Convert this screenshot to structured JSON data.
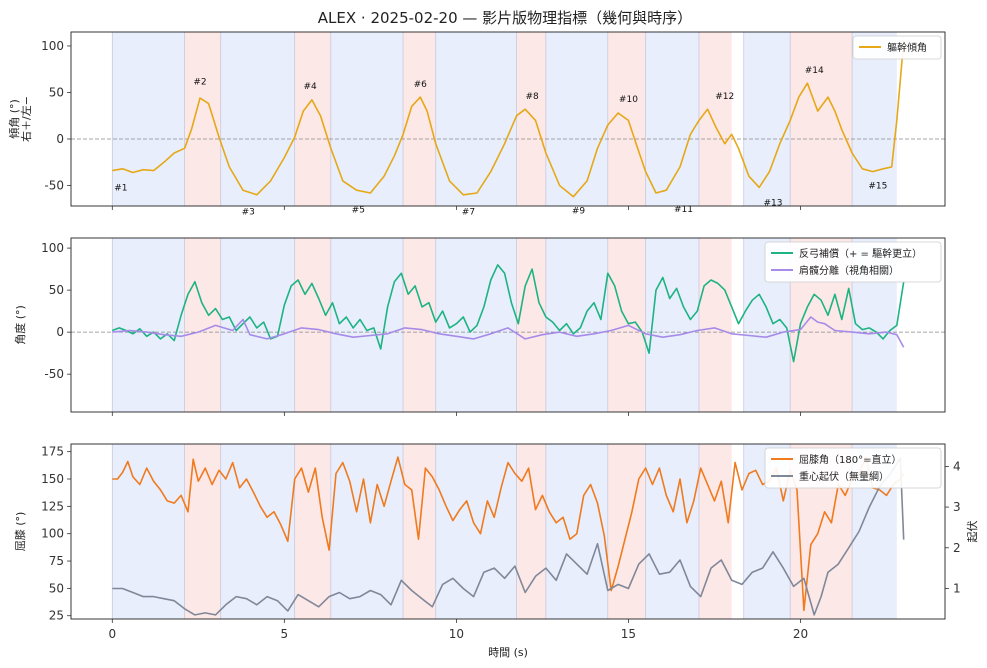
{
  "title": "ALEX · 2025-02-20 — 影片版物理指標（幾何與時序）",
  "xlabel": "時間 (s)",
  "x_ticks": [
    0,
    5,
    10,
    15,
    20
  ],
  "x_range": [
    -1.2,
    24.2
  ],
  "colors": {
    "tilt": "#e6a817",
    "counter": "#1db382",
    "shoulder": "#a78be8",
    "knee": "#f07a1e",
    "com": "#7f8899",
    "band_blue": "#e8eefc",
    "band_red": "#fde8e8",
    "zero_line": "#888888"
  },
  "bands": [
    {
      "start": 0.0,
      "end": 2.1,
      "side": "left"
    },
    {
      "start": 2.1,
      "end": 3.15,
      "side": "right"
    },
    {
      "start": 3.15,
      "end": 5.3,
      "side": "left"
    },
    {
      "start": 5.3,
      "end": 6.35,
      "side": "right"
    },
    {
      "start": 6.35,
      "end": 8.45,
      "side": "left"
    },
    {
      "start": 8.45,
      "end": 9.4,
      "side": "right"
    },
    {
      "start": 9.4,
      "end": 11.75,
      "side": "left"
    },
    {
      "start": 11.75,
      "end": 12.6,
      "side": "right"
    },
    {
      "start": 12.6,
      "end": 14.4,
      "side": "left"
    },
    {
      "start": 14.4,
      "end": 15.5,
      "side": "right"
    },
    {
      "start": 15.5,
      "end": 17.05,
      "side": "left"
    },
    {
      "start": 17.05,
      "end": 18.0,
      "side": "right"
    },
    {
      "start": 18.35,
      "end": 19.7,
      "side": "left"
    },
    {
      "start": 19.7,
      "end": 21.5,
      "side": "right"
    },
    {
      "start": 21.5,
      "end": 22.8,
      "side": "left"
    }
  ],
  "chart_data": [
    {
      "type": "line",
      "ylabel": "傾角 (°)\n右＋/左−",
      "ylim": [
        -72,
        115
      ],
      "y_ticks": [
        -50,
        0,
        50,
        100
      ],
      "legend_position": "top-right",
      "series": [
        {
          "name": "軀幹傾角",
          "color_key": "tilt",
          "x": [
            0.0,
            0.3,
            0.6,
            0.9,
            1.2,
            1.5,
            1.8,
            2.1,
            2.3,
            2.55,
            2.8,
            3.1,
            3.4,
            3.8,
            4.2,
            4.6,
            5.0,
            5.3,
            5.55,
            5.8,
            6.05,
            6.35,
            6.7,
            7.1,
            7.5,
            7.9,
            8.2,
            8.45,
            8.7,
            8.95,
            9.15,
            9.4,
            9.8,
            10.2,
            10.6,
            11.0,
            11.4,
            11.75,
            12.0,
            12.3,
            12.6,
            13.0,
            13.4,
            13.8,
            14.1,
            14.4,
            14.7,
            15.0,
            15.25,
            15.5,
            15.8,
            16.1,
            16.5,
            16.8,
            17.05,
            17.3,
            17.55,
            17.8,
            18.0,
            18.2,
            18.5,
            18.8,
            19.1,
            19.4,
            19.7,
            19.95,
            20.2,
            20.5,
            20.8,
            21.0,
            21.2,
            21.5,
            21.8,
            22.1,
            22.4,
            22.65,
            22.8,
            23.0
          ],
          "y": [
            -34,
            -32,
            -36,
            -33,
            -34,
            -25,
            -15,
            -10,
            10,
            44,
            38,
            2,
            -30,
            -55,
            -60,
            -45,
            -20,
            2,
            30,
            42,
            25,
            -10,
            -45,
            -55,
            -58,
            -40,
            -18,
            5,
            35,
            45,
            30,
            -5,
            -45,
            -60,
            -58,
            -35,
            -5,
            25,
            32,
            20,
            -15,
            -50,
            -62,
            -45,
            -10,
            15,
            28,
            20,
            -8,
            -35,
            -58,
            -55,
            -30,
            5,
            20,
            32,
            12,
            -5,
            5,
            -10,
            -40,
            -52,
            -35,
            -5,
            20,
            45,
            60,
            30,
            45,
            30,
            10,
            -15,
            -32,
            -35,
            -32,
            -30,
            20,
            105
          ]
        }
      ],
      "annotations": [
        {
          "label": "#1",
          "x": 0.25,
          "y": -52
        },
        {
          "label": "#2",
          "x": 2.55,
          "y": 62
        },
        {
          "label": "#3",
          "x": 3.95,
          "y": -78
        },
        {
          "label": "#4",
          "x": 5.75,
          "y": 57
        },
        {
          "label": "#5",
          "x": 7.15,
          "y": -76
        },
        {
          "label": "#6",
          "x": 8.95,
          "y": 59
        },
        {
          "label": "#7",
          "x": 10.35,
          "y": -78
        },
        {
          "label": "#8",
          "x": 12.2,
          "y": 46
        },
        {
          "label": "#9",
          "x": 13.55,
          "y": -77
        },
        {
          "label": "#10",
          "x": 15.0,
          "y": 43
        },
        {
          "label": "#11",
          "x": 16.6,
          "y": -75
        },
        {
          "label": "#12",
          "x": 17.8,
          "y": 46
        },
        {
          "label": "#13",
          "x": 19.2,
          "y": -68
        },
        {
          "label": "#14",
          "x": 20.4,
          "y": 74
        },
        {
          "label": "#15",
          "x": 22.25,
          "y": -50
        }
      ]
    },
    {
      "type": "line",
      "ylabel": "角度 (°)",
      "ylim": [
        -95,
        112
      ],
      "y_ticks": [
        -50,
        0,
        50,
        100
      ],
      "legend_position": "top-right",
      "series": [
        {
          "name": "反弓補償（+ = 驅幹更立）",
          "color_key": "counter",
          "x": [
            0.0,
            0.2,
            0.4,
            0.6,
            0.8,
            1.0,
            1.2,
            1.4,
            1.6,
            1.8,
            2.0,
            2.2,
            2.4,
            2.6,
            2.8,
            3.0,
            3.2,
            3.4,
            3.6,
            3.8,
            4.0,
            4.2,
            4.4,
            4.6,
            4.8,
            5.0,
            5.2,
            5.4,
            5.6,
            5.8,
            6.0,
            6.2,
            6.4,
            6.6,
            6.8,
            7.0,
            7.2,
            7.4,
            7.6,
            7.8,
            8.0,
            8.2,
            8.4,
            8.6,
            8.8,
            9.0,
            9.2,
            9.4,
            9.6,
            9.8,
            10.0,
            10.2,
            10.4,
            10.6,
            10.8,
            11.0,
            11.2,
            11.4,
            11.6,
            11.8,
            12.0,
            12.2,
            12.4,
            12.6,
            12.8,
            13.0,
            13.2,
            13.4,
            13.6,
            13.8,
            14.0,
            14.2,
            14.4,
            14.6,
            14.8,
            15.0,
            15.2,
            15.4,
            15.6,
            15.8,
            16.0,
            16.2,
            16.4,
            16.6,
            16.8,
            17.0,
            17.2,
            17.4,
            17.6,
            17.8,
            18.0,
            18.2,
            18.4,
            18.6,
            18.8,
            19.0,
            19.2,
            19.4,
            19.6,
            19.8,
            20.0,
            20.2,
            20.4,
            20.6,
            20.8,
            21.0,
            21.2,
            21.4,
            21.6,
            21.8,
            22.0,
            22.2,
            22.4,
            22.6,
            22.8,
            23.0
          ],
          "y": [
            2,
            5,
            2,
            -2,
            4,
            -5,
            0,
            -8,
            -2,
            -10,
            20,
            45,
            60,
            35,
            20,
            28,
            15,
            18,
            2,
            10,
            18,
            5,
            12,
            -8,
            -5,
            32,
            55,
            62,
            45,
            58,
            40,
            20,
            35,
            10,
            18,
            5,
            15,
            2,
            5,
            -20,
            30,
            60,
            70,
            45,
            55,
            30,
            35,
            12,
            25,
            5,
            10,
            18,
            0,
            8,
            30,
            62,
            80,
            70,
            35,
            10,
            55,
            75,
            35,
            18,
            12,
            2,
            10,
            -2,
            5,
            25,
            35,
            15,
            70,
            55,
            25,
            10,
            12,
            0,
            -25,
            50,
            65,
            40,
            52,
            30,
            15,
            25,
            55,
            62,
            58,
            50,
            30,
            10,
            25,
            38,
            45,
            30,
            10,
            15,
            5,
            -35,
            10,
            30,
            45,
            38,
            20,
            45,
            15,
            52,
            10,
            3,
            5,
            0,
            -8,
            2,
            8,
            60
          ]
        },
        {
          "name": "肩髖分離（視角相關）",
          "color_key": "shoulder",
          "x": [
            0.0,
            0.5,
            1.0,
            1.5,
            2.0,
            2.5,
            3.0,
            3.5,
            3.8,
            4.0,
            4.5,
            5.0,
            5.5,
            6.0,
            6.5,
            7.0,
            7.5,
            8.0,
            8.5,
            9.0,
            9.5,
            10.0,
            10.5,
            11.0,
            11.5,
            12.0,
            12.5,
            13.0,
            13.5,
            14.0,
            14.5,
            15.0,
            15.5,
            16.0,
            16.5,
            17.0,
            17.5,
            18.0,
            18.5,
            19.0,
            19.5,
            20.0,
            20.3,
            20.5,
            20.7,
            21.0,
            21.5,
            22.0,
            22.5,
            22.8,
            23.0
          ],
          "y": [
            0,
            2,
            0,
            -3,
            -5,
            0,
            8,
            2,
            15,
            -3,
            -8,
            -2,
            5,
            3,
            -2,
            -6,
            -4,
            -2,
            5,
            3,
            -2,
            -5,
            -8,
            -2,
            5,
            -8,
            -3,
            0,
            -5,
            -2,
            2,
            8,
            -2,
            -6,
            -3,
            2,
            5,
            -2,
            -4,
            -6,
            0,
            3,
            18,
            12,
            10,
            2,
            0,
            -2,
            0,
            -3,
            -18
          ]
        }
      ]
    },
    {
      "type": "line",
      "ylabel": "屈膝 (°)",
      "ylabel_right": "起伏",
      "ylim": [
        22,
        182
      ],
      "y_ticks": [
        25,
        50,
        75,
        100,
        125,
        150,
        175
      ],
      "ylim_right": [
        0.25,
        4.55
      ],
      "y_ticks_right": [
        1,
        2,
        3,
        4
      ],
      "legend_position": "top-right",
      "series": [
        {
          "name": "屈膝角（180°=直立）",
          "color_key": "knee",
          "axis": "left",
          "x": [
            0.0,
            0.15,
            0.3,
            0.45,
            0.6,
            0.8,
            1.0,
            1.2,
            1.4,
            1.6,
            1.8,
            2.0,
            2.2,
            2.35,
            2.5,
            2.7,
            2.9,
            3.1,
            3.3,
            3.5,
            3.7,
            3.9,
            4.1,
            4.3,
            4.5,
            4.7,
            4.9,
            5.1,
            5.3,
            5.5,
            5.7,
            5.9,
            6.1,
            6.3,
            6.5,
            6.7,
            6.9,
            7.1,
            7.3,
            7.5,
            7.7,
            7.9,
            8.1,
            8.3,
            8.5,
            8.7,
            8.9,
            9.1,
            9.3,
            9.5,
            9.7,
            9.9,
            10.1,
            10.3,
            10.5,
            10.7,
            10.9,
            11.1,
            11.3,
            11.5,
            11.7,
            11.9,
            12.1,
            12.3,
            12.5,
            12.7,
            12.9,
            13.1,
            13.3,
            13.5,
            13.7,
            13.9,
            14.1,
            14.3,
            14.5,
            14.7,
            14.9,
            15.1,
            15.3,
            15.5,
            15.7,
            15.9,
            16.1,
            16.3,
            16.5,
            16.7,
            16.9,
            17.1,
            17.3,
            17.5,
            17.7,
            17.9,
            18.1,
            18.3,
            18.5,
            18.7,
            18.9,
            19.1,
            19.3,
            19.5,
            19.7,
            19.9,
            20.1,
            20.3,
            20.5,
            20.7,
            20.9,
            21.1,
            21.3,
            21.5,
            21.7,
            21.9,
            22.1,
            22.3,
            22.5,
            22.7,
            22.9,
            23.0
          ],
          "y": [
            150,
            150,
            156,
            166,
            152,
            145,
            160,
            148,
            140,
            130,
            128,
            135,
            120,
            168,
            148,
            160,
            145,
            158,
            150,
            165,
            142,
            150,
            138,
            125,
            115,
            120,
            108,
            93,
            150,
            160,
            138,
            160,
            115,
            85,
            155,
            165,
            148,
            120,
            150,
            110,
            145,
            125,
            148,
            170,
            145,
            140,
            95,
            160,
            152,
            140,
            125,
            112,
            122,
            130,
            110,
            100,
            130,
            115,
            142,
            165,
            155,
            148,
            160,
            122,
            135,
            120,
            110,
            115,
            95,
            100,
            135,
            145,
            128,
            98,
            48,
            70,
            95,
            120,
            150,
            160,
            145,
            160,
            135,
            120,
            150,
            110,
            130,
            160,
            145,
            130,
            148,
            110,
            165,
            140,
            155,
            158,
            145,
            148,
            160,
            130,
            158,
            140,
            30,
            90,
            100,
            120,
            110,
            145,
            135,
            150,
            155,
            170,
            142,
            140,
            135,
            145,
            150,
            155
          ]
        },
        {
          "name": "重心起伏（無量綱）",
          "color_key": "com",
          "axis": "right",
          "x": [
            0.0,
            0.3,
            0.6,
            0.9,
            1.2,
            1.5,
            1.8,
            2.1,
            2.4,
            2.7,
            3.0,
            3.3,
            3.6,
            3.9,
            4.2,
            4.5,
            4.8,
            5.1,
            5.4,
            5.7,
            6.0,
            6.3,
            6.6,
            6.9,
            7.2,
            7.5,
            7.8,
            8.1,
            8.4,
            8.7,
            9.0,
            9.3,
            9.6,
            9.9,
            10.2,
            10.5,
            10.8,
            11.1,
            11.4,
            11.7,
            12.0,
            12.3,
            12.6,
            12.9,
            13.2,
            13.5,
            13.8,
            14.1,
            14.4,
            14.7,
            15.0,
            15.3,
            15.6,
            15.9,
            16.2,
            16.5,
            16.8,
            17.1,
            17.4,
            17.7,
            18.0,
            18.3,
            18.6,
            18.9,
            19.2,
            19.5,
            19.8,
            20.1,
            20.4,
            20.6,
            20.8,
            21.1,
            21.4,
            21.7,
            22.0,
            22.3,
            22.6,
            22.9,
            23.0
          ],
          "y": [
            1.0,
            1.0,
            0.9,
            0.8,
            0.8,
            0.75,
            0.7,
            0.5,
            0.35,
            0.4,
            0.35,
            0.6,
            0.8,
            0.75,
            0.6,
            0.8,
            0.7,
            0.45,
            0.85,
            0.7,
            0.55,
            0.8,
            0.9,
            0.75,
            0.8,
            0.95,
            0.85,
            0.6,
            1.2,
            0.95,
            0.75,
            0.55,
            1.1,
            1.25,
            1.0,
            0.8,
            1.4,
            1.5,
            1.25,
            1.55,
            0.9,
            1.3,
            1.5,
            1.2,
            1.85,
            1.6,
            1.35,
            2.1,
            0.95,
            1.1,
            1.0,
            1.6,
            1.85,
            1.35,
            1.4,
            1.7,
            1.05,
            0.8,
            1.5,
            1.7,
            1.2,
            1.1,
            1.4,
            1.5,
            1.9,
            1.5,
            1.05,
            1.25,
            0.35,
            0.8,
            1.4,
            1.6,
            2.0,
            2.4,
            3.0,
            3.5,
            3.8,
            4.2,
            2.2
          ]
        }
      ]
    }
  ]
}
